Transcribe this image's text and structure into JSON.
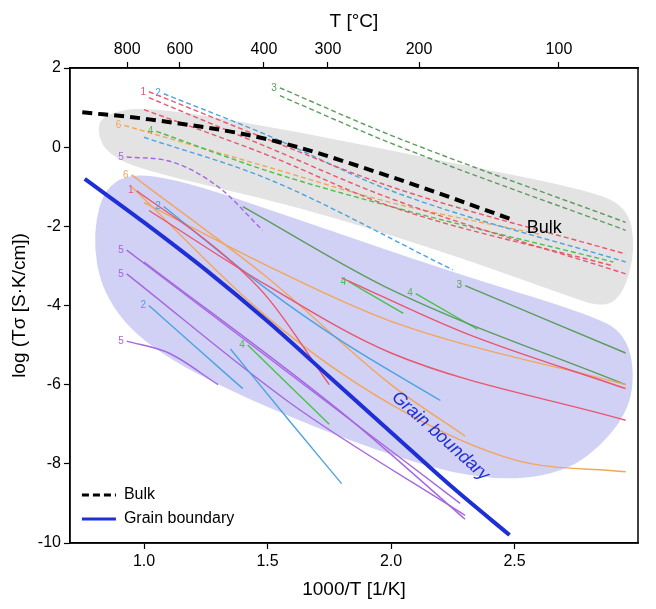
{
  "chart_data": {
    "type": "line",
    "x_label": "1000/T [1/K]",
    "y_label": "log (Tσ [S·K/cm])",
    "x2_label": "T [°C]",
    "xlim": [
      0.7,
      3.0
    ],
    "xticks": [
      {
        "value": 1,
        "label": "1.0"
      },
      1.5,
      {
        "value": 2,
        "label": "2.0"
      },
      2.5
    ],
    "x2ticks": [
      800,
      600,
      400,
      300,
      200,
      100
    ],
    "ylim": [
      -10,
      2
    ],
    "yticks": [
      -10,
      -8,
      -6,
      -4,
      -2,
      0,
      2
    ],
    "grid": false,
    "legend": "lower left",
    "regions": [
      {
        "color": "#dedede",
        "x": [
          0.83,
          1.01,
          1.63,
          2.25,
          2.78,
          2.96,
          2.99,
          2.94,
          2.86,
          2.7,
          2.25,
          1.63,
          1.01,
          0.85,
          0.81
        ],
        "values": [
          0.82,
          1.05,
          0.38,
          -0.4,
          -1.06,
          -1.5,
          -2.61,
          -3.72,
          -4.06,
          -3.72,
          -2.72,
          -1.5,
          -0.62,
          -0.17,
          0.38
        ]
      },
      {
        "color": "#c9c9f4",
        "x": [
          0.85,
          1.05,
          1.63,
          2.25,
          2.78,
          2.96,
          2.99,
          2.9,
          2.7,
          2.37,
          1.96,
          1.42,
          1.01,
          0.83,
          0.79
        ],
        "values": [
          -0.84,
          -0.62,
          -1.84,
          -3.17,
          -4.17,
          -4.72,
          -6.16,
          -7.27,
          -8.27,
          -8.43,
          -7.72,
          -6.39,
          -5.05,
          -3.72,
          -2.17
        ]
      }
    ],
    "series": [
      {
        "label": "1",
        "color": "#e8566e",
        "line_style": "dashed",
        "x": [
          1.02,
          1.5,
          2.0,
          2.95
        ],
        "values": [
          1.4,
          0.2,
          -1.0,
          -2.7
        ]
      },
      {
        "color": "#e8566e",
        "line_style": "dashed",
        "x": [
          1.02,
          1.5,
          2.0,
          2.95
        ],
        "values": [
          1.25,
          0.0,
          -1.3,
          -3.2
        ]
      },
      {
        "color": "#e8566e",
        "line_style": "dashed",
        "x": [
          1.0,
          1.5,
          2.0,
          2.9
        ],
        "values": [
          0.95,
          -0.2,
          -1.5,
          -3.0
        ]
      },
      {
        "label": "2",
        "color": "#4ba3e0",
        "line_style": "dashed",
        "x": [
          1.08,
          1.5,
          2.0,
          2.95
        ],
        "values": [
          1.35,
          0.3,
          -1.1,
          -2.9
        ]
      },
      {
        "color": "#4ba3e0",
        "line_style": "dashed",
        "x": [
          1.0,
          1.5,
          2.25
        ],
        "values": [
          0.25,
          -0.8,
          -3.1
        ]
      },
      {
        "label": "3",
        "color": "#5c9c5c",
        "line_style": "dashed",
        "x": [
          1.55,
          2.0,
          2.95
        ],
        "values": [
          1.5,
          0.3,
          -1.9
        ]
      },
      {
        "color": "#5c9c5c",
        "line_style": "dashed",
        "x": [
          1.55,
          2.0,
          2.95
        ],
        "values": [
          1.3,
          0.1,
          -2.1
        ]
      },
      {
        "label": "4",
        "color": "#49c149",
        "line_style": "dashed",
        "x": [
          1.05,
          1.5,
          2.0,
          2.9
        ],
        "values": [
          0.4,
          -0.6,
          -1.5,
          -2.9
        ]
      },
      {
        "label": "6",
        "color": "#f2a65a",
        "line_style": "dashed",
        "x": [
          0.92,
          1.5,
          2.0,
          2.6
        ],
        "values": [
          0.55,
          -0.5,
          -1.4,
          -2.2
        ]
      },
      {
        "label": "5",
        "color": "#a566e0",
        "line_style": "dashed",
        "x": [
          0.93,
          1.1,
          1.3,
          1.48
        ],
        "values": [
          -0.25,
          -0.35,
          -1.0,
          -2.1
        ]
      },
      {
        "label": "1",
        "color": "#e8566e",
        "line_style": "solid",
        "x": [
          0.97,
          1.3,
          1.5,
          1.75
        ],
        "values": [
          -1.1,
          -2.6,
          -3.8,
          -6.0
        ]
      },
      {
        "color": "#e8566e",
        "line_style": "solid",
        "x": [
          1.02,
          1.5,
          2.0,
          2.95
        ],
        "values": [
          -1.6,
          -3.5,
          -5.2,
          -6.9
        ]
      },
      {
        "color": "#e8566e",
        "line_style": "solid",
        "x": [
          1.8,
          2.3,
          2.95
        ],
        "values": [
          -3.3,
          -4.7,
          -6.1
        ]
      },
      {
        "label": "2",
        "color": "#4ba3e0",
        "line_style": "solid",
        "x": [
          1.08,
          1.5,
          1.8,
          2.2
        ],
        "values": [
          -1.5,
          -3.6,
          -4.9,
          -6.4
        ]
      },
      {
        "color": "#4ba3e0",
        "line_style": "solid",
        "x": [
          1.35,
          1.6,
          1.8
        ],
        "values": [
          -5.1,
          -7.0,
          -8.5
        ]
      },
      {
        "label": "2",
        "color": "#4ba3e0",
        "line_style": "solid",
        "x": [
          1.02,
          1.2,
          1.4
        ],
        "values": [
          -4.0,
          -5.0,
          -6.1
        ]
      },
      {
        "label": "6",
        "color": "#f2a65a",
        "line_style": "solid",
        "x": [
          0.95,
          1.5,
          2.0,
          2.3
        ],
        "values": [
          -0.7,
          -3.3,
          -6.0,
          -7.3
        ]
      },
      {
        "color": "#f2a65a",
        "line_style": "solid",
        "x": [
          0.95,
          1.5,
          2.0,
          2.5,
          2.95
        ],
        "values": [
          -1.0,
          -4.3,
          -6.5,
          -7.9,
          -8.2
        ]
      },
      {
        "color": "#f2a65a",
        "line_style": "solid",
        "x": [
          1.0,
          1.5,
          2.0,
          2.95
        ],
        "values": [
          -1.4,
          -3.0,
          -4.4,
          -6.0
        ]
      },
      {
        "label": "3",
        "color": "#5c9c5c",
        "line_style": "solid",
        "x": [
          2.3,
          2.95
        ],
        "values": [
          -3.5,
          -5.2
        ]
      },
      {
        "color": "#5c9c5c",
        "line_style": "solid",
        "x": [
          1.4,
          2.0,
          2.95
        ],
        "values": [
          -1.5,
          -3.6,
          -6.0
        ]
      },
      {
        "label": "4",
        "color": "#49c149",
        "line_style": "solid",
        "x": [
          1.83,
          2.05
        ],
        "values": [
          -3.4,
          -4.2
        ]
      },
      {
        "label": "4",
        "color": "#49c149",
        "line_style": "solid",
        "x": [
          2.1,
          2.35
        ],
        "values": [
          -3.7,
          -4.6
        ]
      },
      {
        "label": "4",
        "color": "#49c149",
        "line_style": "solid",
        "x": [
          1.42,
          1.75
        ],
        "values": [
          -5.0,
          -7.0
        ]
      },
      {
        "label": "5",
        "color": "#a566e0",
        "line_style": "solid",
        "x": [
          0.93,
          1.5,
          2.28
        ],
        "values": [
          -2.6,
          -5.3,
          -9.0
        ]
      },
      {
        "label": "5",
        "color": "#a566e0",
        "line_style": "solid",
        "x": [
          0.93,
          1.6,
          2.3
        ],
        "values": [
          -3.2,
          -6.5,
          -9.3
        ]
      },
      {
        "label": "5",
        "color": "#a566e0",
        "line_style": "solid",
        "x": [
          0.93,
          1.1,
          1.3
        ],
        "values": [
          -4.9,
          -5.2,
          -6.0
        ]
      },
      {
        "color": "#a566e0",
        "line_style": "solid",
        "x": [
          1.0,
          1.8,
          2.3
        ],
        "values": [
          -2.9,
          -6.7,
          -9.4
        ]
      },
      {
        "name": "Bulk",
        "color": "#000000",
        "line_style": "dashed",
        "x": [
          0.75,
          1.0,
          1.5,
          2.0,
          2.5
        ],
        "values": [
          0.88,
          0.72,
          0.2,
          -0.75,
          -1.85
        ]
      },
      {
        "name": "Grain boundary",
        "color": "#1f2fd6",
        "line_style": "solid",
        "x": [
          0.76,
          1.0,
          1.25,
          1.5,
          1.75,
          2.0,
          2.25,
          2.48
        ],
        "values": [
          -0.8,
          -1.9,
          -3.1,
          -4.4,
          -5.8,
          -7.2,
          -8.6,
          -9.8
        ]
      }
    ],
    "annotations": [
      {
        "text": "Bulk",
        "x": 2.62,
        "y": -2.05
      },
      {
        "text": "Grain boundary",
        "x": 2.2,
        "y": -7.3
      }
    ]
  }
}
